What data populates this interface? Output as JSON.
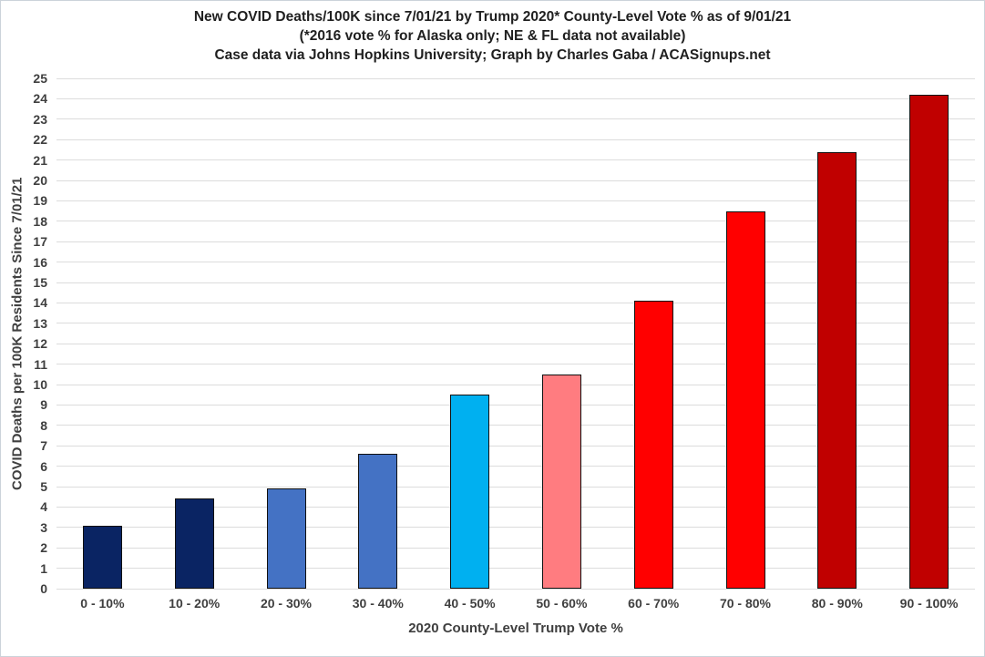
{
  "chart_data": {
    "type": "bar",
    "title": "New COVID Deaths/100K since 7/01/21 by Trump 2020* County-Level Vote % as of 9/01/21",
    "subtitle": "(*2016 vote % for Alaska only; NE & FL data not available)",
    "attribution": "Case data via Johns Hopkins University; Graph by Charles Gaba / ACASignups.net",
    "categories": [
      "0 - 10%",
      "10 - 20%",
      "20 - 30%",
      "30 - 40%",
      "40 - 50%",
      "50 - 60%",
      "60 - 70%",
      "70 - 80%",
      "80 - 90%",
      "90 - 100%"
    ],
    "values": [
      3.1,
      4.4,
      4.9,
      6.6,
      9.5,
      10.5,
      14.1,
      18.5,
      21.4,
      24.2
    ],
    "bar_colors": [
      "#0a2463",
      "#0a2463",
      "#4472c4",
      "#4472c4",
      "#00b0f0",
      "#ff7c80",
      "#ff0000",
      "#ff0000",
      "#c00000",
      "#c00000"
    ],
    "bar_border_color": "#101010",
    "xlabel": "2020 County-Level Trump Vote %",
    "ylabel": "COVID Deaths per 100K Residents Since 7/01/21",
    "ylim": [
      0,
      25
    ],
    "ytick_step": 1,
    "grid": true,
    "gridline_color": "#dcdcdc",
    "legend": "none",
    "title_color": "#1f1f1f",
    "axis_text_color": "#3f3f3f",
    "background_color": "#ffffff"
  }
}
